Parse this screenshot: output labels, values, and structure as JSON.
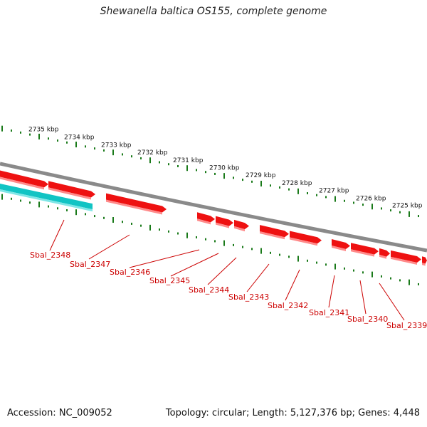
{
  "title": "Shewanella baltica OS155, complete genome",
  "footer": {
    "accession": "Accession: NC_009052",
    "topology": "Topology: circular; Length: 5,127,376 bp; Genes: 4,448"
  },
  "colors": {
    "backbone": "#8a8a8a",
    "tick": "#1a7a1a",
    "gene_forward": "#ee1111",
    "gene_reverse": "#11c4c4",
    "gene_label": "#cc0000"
  },
  "ruler_labels": [
    "2735 kbp",
    "2734 kbp",
    "2733 kbp",
    "2732 kbp",
    "2731 kbp",
    "2730 kbp",
    "2729 kbp",
    "2728 kbp",
    "2727 kbp",
    "2726 kbp",
    "2725 kbp"
  ],
  "genes": [
    {
      "label": "Sbal_2348"
    },
    {
      "label": "Sbal_2347"
    },
    {
      "label": "Sbal_2346"
    },
    {
      "label": "Sbal_2345"
    },
    {
      "label": "Sbal_2344"
    },
    {
      "label": "Sbal_2343"
    },
    {
      "label": "Sbal_2342"
    },
    {
      "label": "Sbal_2341"
    },
    {
      "label": "Sbal_2340"
    },
    {
      "label": "Sbal_2339"
    }
  ]
}
